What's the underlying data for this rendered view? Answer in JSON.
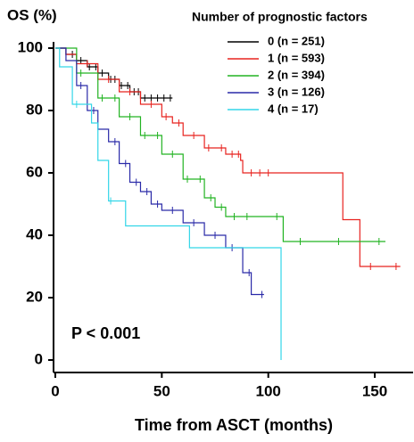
{
  "chart_data": {
    "type": "km",
    "y_label": "OS (%)",
    "x_label": "Time from ASCT (months)",
    "legend_title": "Number of prognostic factors",
    "annotation": "P < 0.001",
    "xlim": [
      0,
      168
    ],
    "xticks": [
      0,
      50,
      100,
      150
    ],
    "ylim": [
      -4,
      102
    ],
    "yticks": [
      0,
      20,
      40,
      60,
      80,
      100
    ],
    "series": [
      {
        "name": "0 (n = 251)",
        "color": "#000000",
        "x": [
          0,
          5,
          10,
          15,
          20,
          25,
          30,
          35,
          40,
          55
        ],
        "values": [
          100,
          98,
          96,
          94,
          92,
          90,
          88,
          86,
          84,
          84
        ],
        "censored": [
          8,
          12,
          16,
          19,
          22,
          26,
          28,
          31,
          34,
          37,
          39,
          42,
          45,
          48,
          51,
          54
        ]
      },
      {
        "name": "1 (n = 593)",
        "color": "#e8231f",
        "x": [
          0,
          5,
          10,
          20,
          30,
          40,
          50,
          55,
          60,
          70,
          80,
          87,
          88,
          135,
          143,
          162
        ],
        "values": [
          100,
          98,
          95,
          90,
          86,
          82,
          78,
          76,
          72,
          68,
          66,
          64,
          60,
          45,
          30,
          30
        ],
        "censored": [
          15,
          25,
          35,
          45,
          52,
          58,
          65,
          72,
          78,
          83,
          86,
          92,
          96,
          100,
          148,
          160
        ]
      },
      {
        "name": "2 (n = 394)",
        "color": "#22b322",
        "x": [
          0,
          10,
          20,
          30,
          40,
          50,
          60,
          70,
          75,
          80,
          106,
          107,
          155
        ],
        "values": [
          100,
          92,
          84,
          78,
          72,
          66,
          58,
          52,
          49,
          46,
          46,
          38,
          38
        ],
        "censored": [
          12,
          22,
          28,
          35,
          42,
          48,
          55,
          62,
          68,
          73,
          78,
          84,
          90,
          104,
          115,
          133,
          152
        ]
      },
      {
        "name": "3 (n = 126)",
        "color": "#2a2aa8",
        "x": [
          0,
          5,
          10,
          15,
          20,
          25,
          30,
          35,
          40,
          45,
          50,
          60,
          70,
          80,
          88,
          92,
          98
        ],
        "values": [
          100,
          96,
          88,
          80,
          74,
          70,
          63,
          57,
          54,
          50,
          48,
          44,
          40,
          36,
          28,
          21,
          21
        ],
        "censored": [
          12,
          18,
          28,
          33,
          38,
          43,
          48,
          55,
          65,
          75,
          83,
          91,
          97
        ]
      },
      {
        "name": "4 (n = 17)",
        "color": "#33d6e8",
        "x": [
          0,
          2,
          8,
          17,
          20,
          25,
          33,
          63,
          106,
          106
        ],
        "values": [
          100,
          94,
          82,
          76,
          64,
          51,
          43,
          36,
          36,
          0
        ],
        "censored": [
          10,
          26
        ]
      }
    ]
  }
}
